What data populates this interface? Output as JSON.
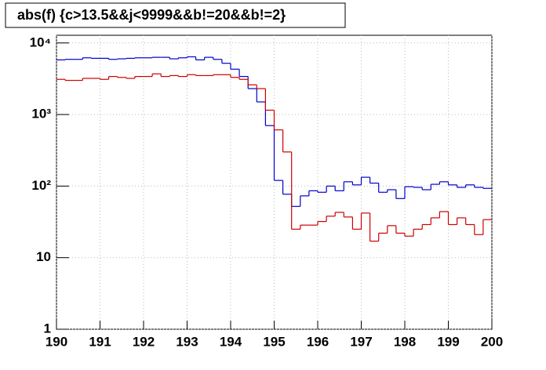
{
  "chart_data": {
    "type": "histogram",
    "title": "abs(f) {c>13.5&&j<9999&&b!=20&&b!=2}",
    "bins": [
      190,
      190.2,
      190.4,
      190.6,
      190.8,
      191,
      191.2,
      191.4,
      191.6,
      191.8,
      192,
      192.2,
      192.4,
      192.6,
      192.8,
      193,
      193.2,
      193.4,
      193.6,
      193.8,
      194,
      194.2,
      194.4,
      194.6,
      194.8,
      195,
      195.2,
      195.4,
      195.6,
      195.8,
      196,
      196.2,
      196.4,
      196.6,
      196.8,
      197,
      197.2,
      197.4,
      197.6,
      197.8,
      198,
      198.2,
      198.4,
      198.6,
      198.8,
      199,
      199.2,
      199.4,
      199.6,
      199.8,
      200
    ],
    "series": [
      {
        "color": "#0000cc",
        "values": [
          5800,
          5900,
          5900,
          6200,
          6100,
          6100,
          5900,
          6000,
          6100,
          6200,
          6200,
          6300,
          6300,
          6000,
          6200,
          6400,
          5800,
          6300,
          5900,
          5200,
          4300,
          3400,
          2300,
          1500,
          700,
          120,
          77,
          52,
          73,
          86,
          82,
          100,
          86,
          115,
          104,
          133,
          110,
          82,
          89,
          67,
          98,
          96,
          89,
          106,
          115,
          104,
          96,
          104,
          96,
          93
        ]
      },
      {
        "color": "#cc0000",
        "values": [
          3100,
          3000,
          3000,
          3200,
          3200,
          3100,
          3400,
          3300,
          3200,
          3400,
          3400,
          3700,
          3400,
          3500,
          3400,
          3600,
          3500,
          3500,
          3600,
          3600,
          3300,
          3100,
          2600,
          2300,
          1150,
          610,
          300,
          25,
          28.5,
          28.5,
          32,
          38,
          43,
          37,
          25,
          42,
          17,
          22,
          28,
          22,
          20,
          25,
          29,
          36,
          44,
          29,
          36,
          29,
          21,
          34
        ]
      }
    ],
    "xlim": [
      190,
      200
    ],
    "xticks": [
      190,
      191,
      192,
      193,
      194,
      195,
      196,
      197,
      198,
      199,
      200
    ],
    "ylim": [
      1,
      12800
    ],
    "log_y": true,
    "yticks": [
      1,
      10,
      {
        "value": 100,
        "label": "10²"
      },
      {
        "value": 1000,
        "label": "10³"
      },
      {
        "value": 10000,
        "label": "10⁴"
      }
    ],
    "grid": true
  }
}
